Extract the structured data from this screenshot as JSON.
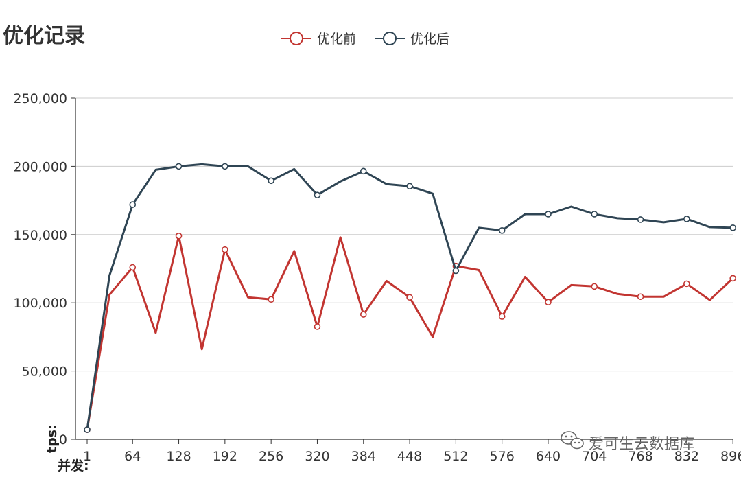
{
  "chart_data": {
    "type": "line",
    "title": "优化记录",
    "ylabel": "tps:",
    "xlabel": "并发:",
    "ylim": [
      0,
      250000
    ],
    "yticks": [
      0,
      50000,
      100000,
      150000,
      200000,
      250000
    ],
    "ytick_labels": [
      "0",
      "50,000",
      "100,000",
      "150,000",
      "200,000",
      "250,000"
    ],
    "xlim": [
      1,
      912
    ],
    "xticks": [
      1,
      64,
      128,
      192,
      256,
      320,
      384,
      448,
      512,
      576,
      640,
      704,
      768,
      832,
      896
    ],
    "xtick_labels": [
      "1",
      "64",
      "128",
      "192",
      "256",
      "320",
      "384",
      "448",
      "512",
      "576",
      "640",
      "704",
      "768",
      "832",
      "896"
    ],
    "grid": true,
    "legend_position": "top-center",
    "series": [
      {
        "name": "优化前",
        "color": "#c23531",
        "x": [
          1,
          32,
          64,
          96,
          128,
          160,
          192,
          224,
          256,
          288,
          320,
          352,
          384,
          416,
          448,
          480,
          512,
          544,
          576,
          608,
          640,
          672,
          704,
          736,
          768,
          800,
          832,
          864,
          896
        ],
        "y": [
          7000,
          106000,
          126000,
          78000,
          149000,
          66000,
          139000,
          104000,
          102500,
          138000,
          82500,
          148000,
          91500,
          116000,
          104000,
          75000,
          127000,
          124000,
          90000,
          119000,
          100500,
          113000,
          112000,
          106500,
          104500,
          104500,
          114000,
          102000,
          118000
        ],
        "markers": [
          true,
          false,
          true,
          false,
          true,
          false,
          true,
          false,
          true,
          false,
          true,
          false,
          true,
          false,
          true,
          false,
          true,
          false,
          true,
          false,
          true,
          false,
          true,
          false,
          true,
          false,
          true,
          false,
          true
        ]
      },
      {
        "name": "优化后",
        "color": "#2f4554",
        "x": [
          1,
          32,
          64,
          96,
          128,
          160,
          192,
          224,
          256,
          288,
          320,
          352,
          384,
          416,
          448,
          480,
          512,
          544,
          576,
          608,
          640,
          672,
          704,
          736,
          768,
          800,
          832,
          864,
          896
        ],
        "y": [
          7000,
          120000,
          172000,
          197500,
          200000,
          201500,
          200000,
          200000,
          189500,
          198000,
          179000,
          189000,
          196500,
          187000,
          185500,
          180000,
          123500,
          155000,
          153000,
          165000,
          165000,
          170500,
          165000,
          162000,
          161000,
          159000,
          161500,
          155500,
          155000
        ],
        "markers": [
          true,
          false,
          true,
          false,
          true,
          false,
          true,
          false,
          true,
          false,
          true,
          false,
          true,
          false,
          true,
          false,
          true,
          false,
          true,
          false,
          true,
          false,
          true,
          false,
          true,
          false,
          true,
          false,
          true
        ]
      }
    ]
  },
  "watermark": {
    "icon": "wechat-icon",
    "text": "爱可生云数据库"
  }
}
